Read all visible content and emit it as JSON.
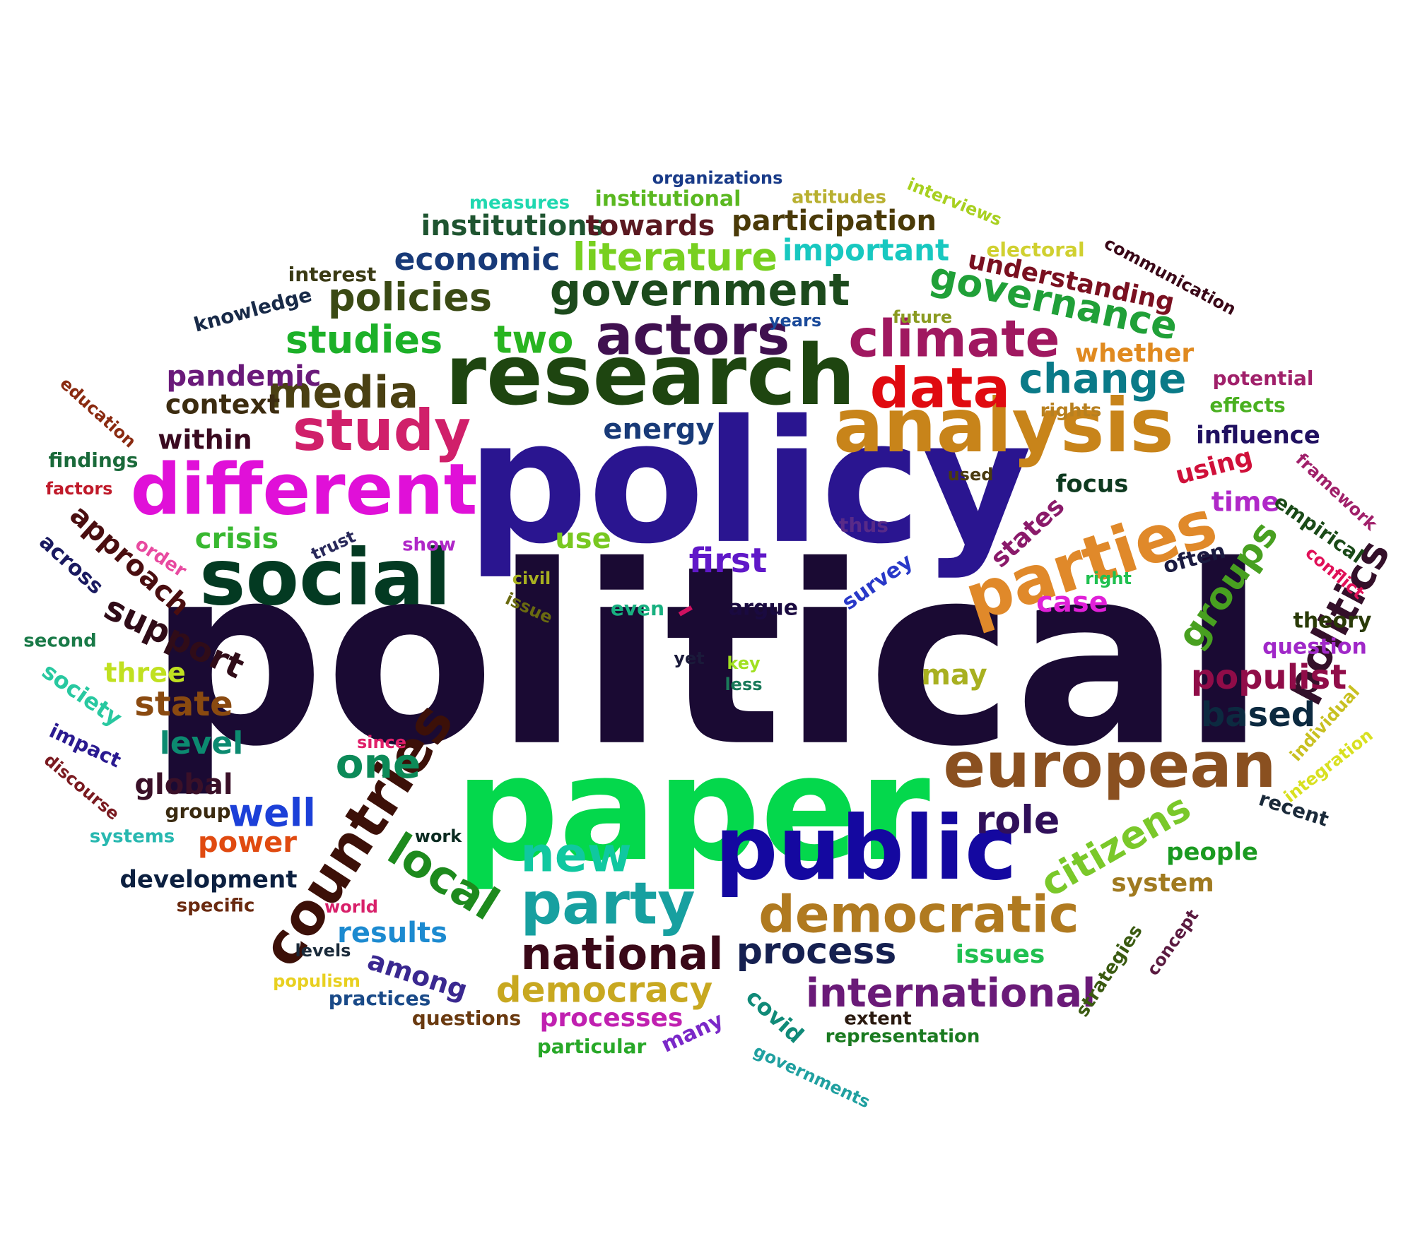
{
  "word_cloud": {
    "background_color": "#ffffff",
    "words": [
      {
        "text": "political",
        "color": "#1a0a33"
      },
      {
        "text": "policy",
        "color": "#2a1590"
      },
      {
        "text": "paper",
        "color": "#04d84c"
      },
      {
        "text": "research",
        "color": "#1e4510"
      },
      {
        "text": "public",
        "color": "#1408a0"
      },
      {
        "text": "social",
        "color": "#033a22"
      },
      {
        "text": "analysis",
        "color": "#c8841a"
      },
      {
        "text": "different",
        "color": "#e010d8"
      },
      {
        "text": "european",
        "color": "#8a5020"
      },
      {
        "text": "parties",
        "color": "#e0892a"
      },
      {
        "text": "countries",
        "color": "#3c1008"
      },
      {
        "text": "democratic",
        "color": "#b07a20"
      },
      {
        "text": "party",
        "color": "#17a0a0"
      },
      {
        "text": "study",
        "color": "#d0206a"
      },
      {
        "text": "data",
        "color": "#e00a10"
      },
      {
        "text": "climate",
        "color": "#a01860"
      },
      {
        "text": "actors",
        "color": "#401050"
      },
      {
        "text": "government",
        "color": "#1c4a1c"
      },
      {
        "text": "media",
        "color": "#4a4012"
      },
      {
        "text": "national",
        "color": "#3a0818"
      },
      {
        "text": "local",
        "color": "#1d8a1d"
      },
      {
        "text": "new",
        "color": "#10c8a0"
      },
      {
        "text": "international",
        "color": "#6a1a78"
      },
      {
        "text": "process",
        "color": "#152050"
      },
      {
        "text": "democracy",
        "color": "#c8a820"
      },
      {
        "text": "politics",
        "color": "#34102a"
      },
      {
        "text": "groups",
        "color": "#48a020"
      },
      {
        "text": "change",
        "color": "#0a7a88"
      },
      {
        "text": "governance",
        "color": "#20a038"
      },
      {
        "text": "literature",
        "color": "#78d020"
      },
      {
        "text": "studies",
        "color": "#1cb028"
      },
      {
        "text": "two",
        "color": "#28b420"
      },
      {
        "text": "policies",
        "color": "#3a4a14"
      },
      {
        "text": "citizens",
        "color": "#7ac82a"
      },
      {
        "text": "role",
        "color": "#30105a"
      },
      {
        "text": "one",
        "color": "#0c8a58"
      },
      {
        "text": "well",
        "color": "#1c40d8"
      },
      {
        "text": "populist",
        "color": "#900c48"
      },
      {
        "text": "support",
        "color": "#300c18"
      },
      {
        "text": "approach",
        "color": "#4a0e10"
      },
      {
        "text": "economic",
        "color": "#183a78"
      },
      {
        "text": "institutions",
        "color": "#1e5430"
      },
      {
        "text": "towards",
        "color": "#5a1820"
      },
      {
        "text": "participation",
        "color": "#4a3a08"
      },
      {
        "text": "important",
        "color": "#18c8c0"
      },
      {
        "text": "understanding",
        "color": "#7a1020"
      },
      {
        "text": "first",
        "color": "#6018c8"
      },
      {
        "text": "state",
        "color": "#8a4a10"
      },
      {
        "text": "based",
        "color": "#0c2a40"
      },
      {
        "text": "results",
        "color": "#1c8ad0"
      },
      {
        "text": "among",
        "color": "#3a2890"
      },
      {
        "text": "processes",
        "color": "#c020b0"
      },
      {
        "text": "power",
        "color": "#e04a10"
      },
      {
        "text": "global",
        "color": "#3a1028"
      },
      {
        "text": "level",
        "color": "#0c8a70"
      },
      {
        "text": "crisis",
        "color": "#38b830"
      },
      {
        "text": "pandemic",
        "color": "#6a1a7a"
      },
      {
        "text": "context",
        "color": "#3c2c10"
      },
      {
        "text": "within",
        "color": "#3a0a20"
      },
      {
        "text": "case",
        "color": "#e020d8"
      },
      {
        "text": "use",
        "color": "#78c820"
      },
      {
        "text": "energy",
        "color": "#183a78"
      },
      {
        "text": "states",
        "color": "#8a1a6a"
      },
      {
        "text": "whether",
        "color": "#e08a20"
      },
      {
        "text": "time",
        "color": "#b028c8"
      },
      {
        "text": "using",
        "color": "#d0103a"
      },
      {
        "text": "influence",
        "color": "#201060"
      },
      {
        "text": "focus",
        "color": "#0e3a20"
      },
      {
        "text": "may",
        "color": "#a8b020"
      },
      {
        "text": "system",
        "color": "#a07a20"
      },
      {
        "text": "people",
        "color": "#1a9a20"
      },
      {
        "text": "issues",
        "color": "#20c050"
      },
      {
        "text": "strategies",
        "color": "#3a5a10"
      },
      {
        "text": "covid",
        "color": "#108a78"
      },
      {
        "text": "development",
        "color": "#0c2040"
      },
      {
        "text": "three",
        "color": "#c0e020"
      },
      {
        "text": "society",
        "color": "#28c8a0"
      },
      {
        "text": "across",
        "color": "#1a1a60"
      },
      {
        "text": "survey",
        "color": "#2838c8"
      },
      {
        "text": "often",
        "color": "#1a1a40"
      },
      {
        "text": "empirical",
        "color": "#1a4a18"
      },
      {
        "text": "framework",
        "color": "#a0206a"
      },
      {
        "text": "theory",
        "color": "#2a3a08"
      },
      {
        "text": "question",
        "color": "#a028c8"
      },
      {
        "text": "conflict",
        "color": "#e01058"
      },
      {
        "text": "potential",
        "color": "#a0206a"
      },
      {
        "text": "effects",
        "color": "#4ab020"
      },
      {
        "text": "rights",
        "color": "#b88020"
      },
      {
        "text": "electoral",
        "color": "#d0d030"
      },
      {
        "text": "communication",
        "color": "#3a0818"
      },
      {
        "text": "interviews",
        "color": "#a8d020"
      },
      {
        "text": "attitudes",
        "color": "#b8b030"
      },
      {
        "text": "institutional",
        "color": "#5ab820"
      },
      {
        "text": "measures",
        "color": "#20d8b0"
      },
      {
        "text": "organizations",
        "color": "#183a88"
      },
      {
        "text": "interest",
        "color": "#3a3a14"
      },
      {
        "text": "knowledge",
        "color": "#182a48"
      },
      {
        "text": "years",
        "color": "#1a4a9a"
      },
      {
        "text": "future",
        "color": "#8a9a20"
      },
      {
        "text": "education",
        "color": "#8a2a10"
      },
      {
        "text": "findings",
        "color": "#1a6a3a"
      },
      {
        "text": "factors",
        "color": "#c01a2a"
      },
      {
        "text": "order",
        "color": "#e84aa0"
      },
      {
        "text": "trust",
        "color": "#28285a"
      },
      {
        "text": "show",
        "color": "#b028c8"
      },
      {
        "text": "civil",
        "color": "#a8b020"
      },
      {
        "text": "issue",
        "color": "#6a6a10"
      },
      {
        "text": "even",
        "color": "#18b080"
      },
      {
        "text": "argue",
        "color": "#1a0a40"
      },
      {
        "text": "thus",
        "color": "#582a88"
      },
      {
        "text": "used",
        "color": "#4a3a10"
      },
      {
        "text": "right",
        "color": "#20c050"
      },
      {
        "text": "second",
        "color": "#1a7a48"
      },
      {
        "text": "yet",
        "color": "#1a1a3a"
      },
      {
        "text": "key",
        "color": "#a0e020"
      },
      {
        "text": "less",
        "color": "#1a7a5a"
      },
      {
        "text": "impact",
        "color": "#2a1a90"
      },
      {
        "text": "discourse",
        "color": "#7a1a20"
      },
      {
        "text": "since",
        "color": "#e0206a"
      },
      {
        "text": "group",
        "color": "#3a2a10"
      },
      {
        "text": "systems",
        "color": "#28b8b0"
      },
      {
        "text": "work",
        "color": "#0a2a20"
      },
      {
        "text": "specific",
        "color": "#6a2a10"
      },
      {
        "text": "world",
        "color": "#d8206a"
      },
      {
        "text": "levels",
        "color": "#1a2a3a"
      },
      {
        "text": "populism",
        "color": "#e8d020"
      },
      {
        "text": "practices",
        "color": "#1a4a88"
      },
      {
        "text": "questions",
        "color": "#6a3a10"
      },
      {
        "text": "particular",
        "color": "#28a828"
      },
      {
        "text": "many",
        "color": "#7a28c8"
      },
      {
        "text": "governments",
        "color": "#20a0a0"
      },
      {
        "text": "extent",
        "color": "#2a1a10"
      },
      {
        "text": "representation",
        "color": "#1a7a20"
      },
      {
        "text": "concept",
        "color": "#5a1a40"
      },
      {
        "text": "individual",
        "color": "#c8c020"
      },
      {
        "text": "integration",
        "color": "#d8e020"
      },
      {
        "text": "recent",
        "color": "#1a2a3a"
      },
      {
        "text": "–",
        "color": "#d01060"
      }
    ]
  }
}
